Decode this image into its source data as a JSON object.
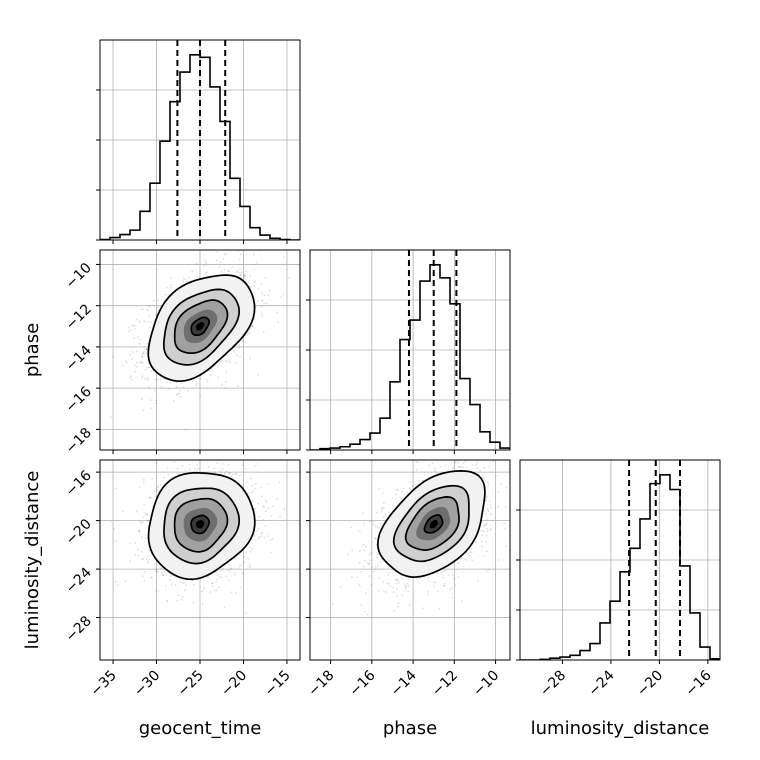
{
  "chart_data": {
    "type": "corner",
    "parameters": [
      "geocent_time",
      "phase",
      "luminosity_distance"
    ],
    "axes": {
      "geocent_time": {
        "range": [
          -36.5,
          -13.5
        ],
        "ticks": [
          -35,
          -30,
          -25,
          -20,
          -15
        ]
      },
      "phase": {
        "range": [
          -19.0,
          -9.3
        ],
        "ticks": [
          -18,
          -16,
          -14,
          -12,
          -10
        ]
      },
      "luminosity_distance": {
        "range": [
          -31.5,
          -15.0
        ],
        "ticks": [
          -28,
          -24,
          -20,
          -16
        ]
      }
    },
    "grid": true,
    "marginals": [
      {
        "parameter": "geocent_time",
        "quantiles": [
          -27.6,
          -25.0,
          -22.1
        ],
        "bin_edges": [
          -36.5,
          -35.35,
          -34.2,
          -33.05,
          -31.9,
          -30.75,
          -29.6,
          -28.45,
          -27.3,
          -26.15,
          -25.0,
          -23.85,
          -22.7,
          -21.55,
          -20.4,
          -19.25,
          -18.1,
          -16.95,
          -15.8,
          -14.65,
          -13.5
        ],
        "counts": [
          0.1,
          0.5,
          1.1,
          2.0,
          5.8,
          11.5,
          20.0,
          28.0,
          34.0,
          37.5,
          37.0,
          31.0,
          24.0,
          12.5,
          6.8,
          2.5,
          1.0,
          0.35,
          0.1,
          0.0
        ]
      },
      {
        "parameter": "phase",
        "quantiles": [
          -14.2,
          -13.0,
          -11.9
        ],
        "bin_edges": [
          -19.0,
          -18.515,
          -18.03,
          -17.545,
          -17.06,
          -16.575,
          -16.09,
          -15.605,
          -15.12,
          -14.635,
          -14.15,
          -13.665,
          -13.18,
          -12.695,
          -12.21,
          -11.725,
          -11.24,
          -10.755,
          -10.27,
          -9.785,
          -9.3
        ],
        "counts": [
          0.0,
          0.2,
          0.3,
          0.5,
          0.9,
          1.6,
          2.6,
          4.9,
          10.5,
          17.0,
          20.0,
          26.0,
          28.5,
          26.5,
          22.5,
          11.0,
          7.0,
          2.8,
          1.2,
          0.3
        ]
      },
      {
        "parameter": "luminosity_distance",
        "quantiles": [
          -22.5,
          -20.3,
          -18.3
        ],
        "bin_edges": [
          -31.5,
          -30.675,
          -29.85,
          -29.025,
          -28.2,
          -27.375,
          -26.55,
          -25.725,
          -24.9,
          -24.075,
          -23.25,
          -22.425,
          -21.6,
          -20.775,
          -19.95,
          -19.125,
          -18.3,
          -17.475,
          -16.65,
          -15.825,
          -15.0
        ],
        "counts": [
          0.0,
          0.0,
          0.1,
          0.3,
          0.5,
          0.8,
          1.6,
          2.8,
          6.3,
          10.0,
          15.0,
          19.0,
          24.0,
          30.0,
          31.5,
          29.0,
          16.0,
          8.0,
          2.2,
          0.2
        ]
      }
    ],
    "joint": [
      {
        "x": "geocent_time",
        "y": "phase",
        "center": [
          -25.0,
          -13.0
        ],
        "sd": [
          3.2,
          1.35
        ],
        "corr": 0.42
      },
      {
        "x": "geocent_time",
        "y": "luminosity_distance",
        "center": [
          -25.0,
          -20.3
        ],
        "sd": [
          3.2,
          2.3
        ],
        "corr": 0.12
      },
      {
        "x": "phase",
        "y": "luminosity_distance",
        "center": [
          -13.0,
          -20.3
        ],
        "sd": [
          1.35,
          2.3
        ],
        "corr": 0.42
      }
    ]
  }
}
